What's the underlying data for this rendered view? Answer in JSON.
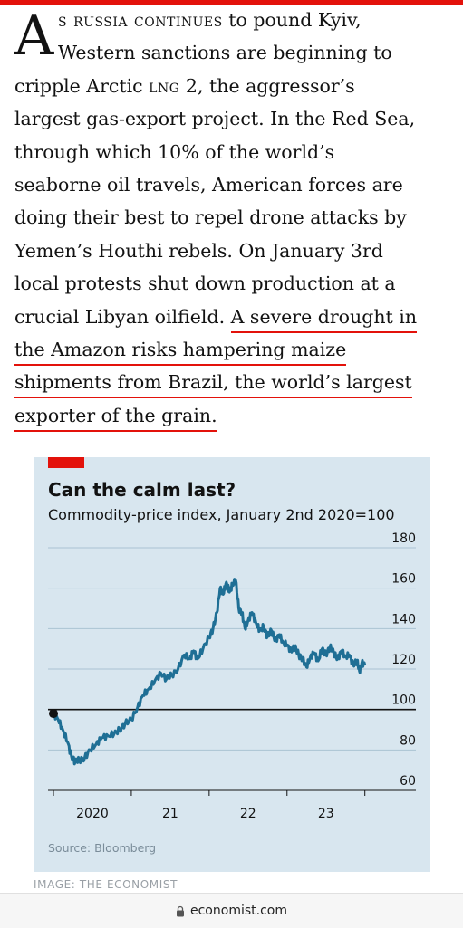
{
  "article": {
    "dropcap": "A",
    "line1_sc": "s russia continues",
    "line1_rest": " to pound Kyiv,",
    "line2": "Western sanctions are beginning to",
    "line3_pre": "cripple Arctic ",
    "line3_sc": "lng",
    "line3_post": " 2, the aggressor’s",
    "line4": "largest gas-export project. In the Red Sea,",
    "line5": "through which 10% of the world’s",
    "line6": "seaborne oil travels, American forces are",
    "line7": "doing their best to repel drone attacks by",
    "line8": "Yemen’s Houthi rebels. On January 3rd",
    "line9": "local protests shut down production at a",
    "line10_pre": "crucial Libyan oilfield. ",
    "line10_hl": "A severe drought in",
    "line11_hl": "the Amazon risks hampering maize",
    "line12_hl": "shipments from Brazil, the world’s largest",
    "line13_hl": "exporter of the grain."
  },
  "chart_title": "Can the calm last?",
  "chart_subtitle": "Commodity-price index, January 2nd 2020=100",
  "chart_source": "Source: Bloomberg",
  "image_credit": "IMAGE: THE ECONOMIST",
  "url_text": "economist.com",
  "colors": {
    "accent_red": "#e3120b",
    "series_blue": "#1f6f95",
    "chart_bg": "#d8e6ef"
  },
  "icons": {
    "lock": "lock-icon"
  },
  "chart_data": {
    "type": "line",
    "title": "Can the calm last?",
    "subtitle": "Commodity-price index, January 2nd 2020=100",
    "xlabel": "",
    "ylabel": "",
    "ylim": [
      60,
      180
    ],
    "y_ticks": [
      60,
      80,
      100,
      120,
      140,
      160,
      180
    ],
    "x_tick_labels": [
      "2020",
      "21",
      "22",
      "23"
    ],
    "xlim": [
      2020.0,
      2024.05
    ],
    "baseline": 100,
    "grid": true,
    "legend": "none",
    "series": [
      {
        "values": [
          [
            2020.0,
            98
          ],
          [
            2020.06,
            95
          ],
          [
            2020.12,
            90
          ],
          [
            2020.18,
            84
          ],
          [
            2020.23,
            77
          ],
          [
            2020.28,
            74
          ],
          [
            2020.33,
            75
          ],
          [
            2020.4,
            76
          ],
          [
            2020.47,
            80
          ],
          [
            2020.55,
            83
          ],
          [
            2020.62,
            86
          ],
          [
            2020.7,
            87
          ],
          [
            2020.78,
            88
          ],
          [
            2020.85,
            90
          ],
          [
            2020.92,
            93
          ],
          [
            2021.0,
            95
          ],
          [
            2021.08,
            101
          ],
          [
            2021.15,
            107
          ],
          [
            2021.22,
            110
          ],
          [
            2021.3,
            114
          ],
          [
            2021.38,
            118
          ],
          [
            2021.45,
            115
          ],
          [
            2021.52,
            117
          ],
          [
            2021.6,
            120
          ],
          [
            2021.68,
            127
          ],
          [
            2021.75,
            125
          ],
          [
            2021.8,
            129
          ],
          [
            2021.85,
            125
          ],
          [
            2021.92,
            130
          ],
          [
            2022.0,
            136
          ],
          [
            2022.05,
            140
          ],
          [
            2022.1,
            148
          ],
          [
            2022.14,
            160
          ],
          [
            2022.18,
            157
          ],
          [
            2022.22,
            163
          ],
          [
            2022.26,
            158
          ],
          [
            2022.3,
            162
          ],
          [
            2022.34,
            164
          ],
          [
            2022.38,
            150
          ],
          [
            2022.42,
            148
          ],
          [
            2022.46,
            140
          ],
          [
            2022.5,
            144
          ],
          [
            2022.55,
            148
          ],
          [
            2022.6,
            143
          ],
          [
            2022.65,
            139
          ],
          [
            2022.7,
            141
          ],
          [
            2022.75,
            136
          ],
          [
            2022.8,
            139
          ],
          [
            2022.85,
            134
          ],
          [
            2022.9,
            137
          ],
          [
            2022.95,
            133
          ],
          [
            2023.0,
            132
          ],
          [
            2023.05,
            129
          ],
          [
            2023.1,
            131
          ],
          [
            2023.15,
            127
          ],
          [
            2023.2,
            125
          ],
          [
            2023.25,
            121
          ],
          [
            2023.3,
            126
          ],
          [
            2023.35,
            128
          ],
          [
            2023.4,
            124
          ],
          [
            2023.45,
            130
          ],
          [
            2023.5,
            127
          ],
          [
            2023.55,
            131
          ],
          [
            2023.6,
            128
          ],
          [
            2023.65,
            125
          ],
          [
            2023.7,
            129
          ],
          [
            2023.75,
            126
          ],
          [
            2023.8,
            127
          ],
          [
            2023.85,
            122
          ],
          [
            2023.9,
            124
          ],
          [
            2023.93,
            119
          ],
          [
            2023.96,
            123
          ],
          [
            2024.0,
            122
          ]
        ]
      }
    ]
  }
}
